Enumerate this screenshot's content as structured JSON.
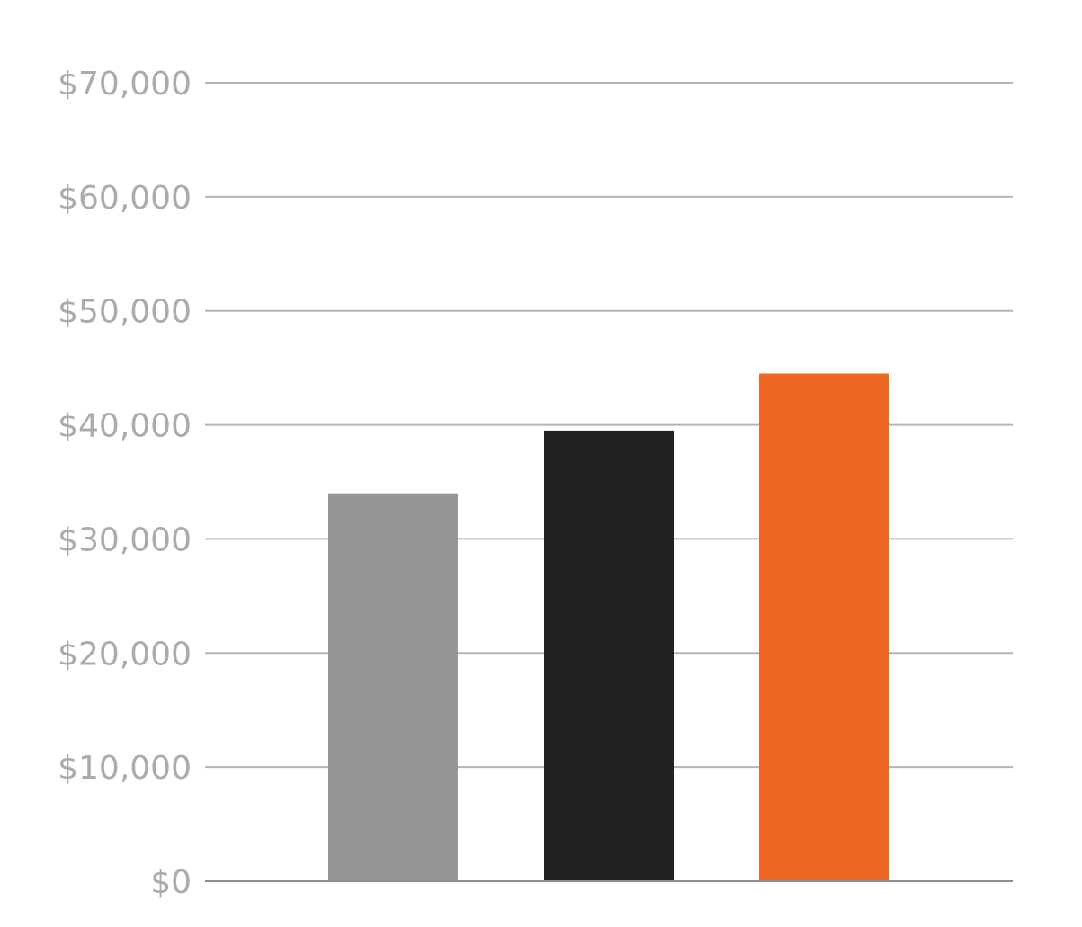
{
  "chart_data": {
    "type": "bar",
    "title": "",
    "xlabel": "",
    "ylabel": "",
    "categories": [
      "",
      "",
      ""
    ],
    "values": [
      34000,
      39500,
      44500
    ],
    "bar_colors": [
      "#969699",
      "#242122",
      "#EE6722"
    ],
    "ylim": [
      0,
      70000
    ],
    "yticks": [
      {
        "value": 0,
        "label": "$0"
      },
      {
        "value": 10000,
        "label": "$10,000"
      },
      {
        "value": 20000,
        "label": "$20,000"
      },
      {
        "value": 30000,
        "label": "$30,000"
      },
      {
        "value": 40000,
        "label": "$40,000"
      },
      {
        "value": 50000,
        "label": "$50,000"
      },
      {
        "value": 60000,
        "label": "$60,000"
      },
      {
        "value": 70000,
        "label": "$70,000"
      }
    ],
    "grid": true,
    "legend": "none",
    "colors": {
      "grid": "#B4B4B5",
      "baseline": "#8E8E90",
      "tick_text": "#ABABAD"
    }
  }
}
